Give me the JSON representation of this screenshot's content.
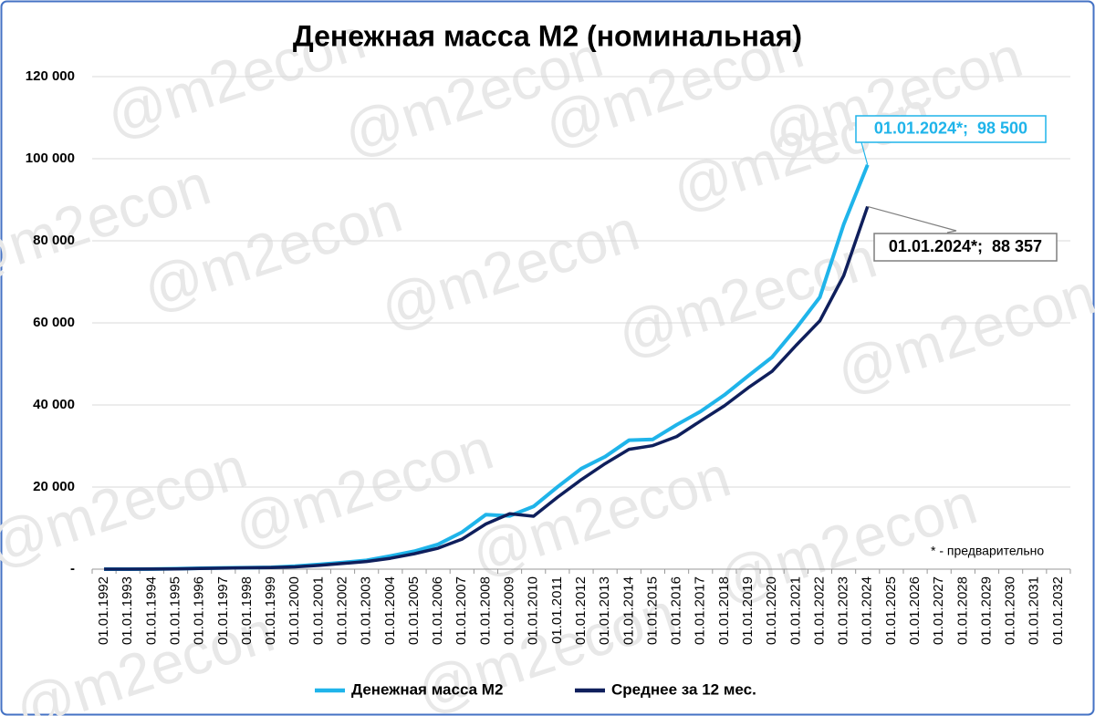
{
  "chart_data": {
    "type": "line",
    "title": "Денежная масса М2 (номинальная)",
    "footnote": "* - предварительно",
    "watermark": "@m2econ",
    "categories": [
      "01.01.1992",
      "01.01.1993",
      "01.01.1994",
      "01.01.1995",
      "01.01.1996",
      "01.01.1997",
      "01.01.1998",
      "01.01.1999",
      "01.01.2000",
      "01.01.2001",
      "01.01.2002",
      "01.01.2003",
      "01.01.2004",
      "01.01.2005",
      "01.01.2006",
      "01.01.2007",
      "01.01.2008",
      "01.01.2009",
      "01.01.2010",
      "01.01.2011",
      "01.01.2012",
      "01.01.2013",
      "01.01.2014",
      "01.01.2015",
      "01.01.2016",
      "01.01.2017",
      "01.01.2018",
      "01.01.2019",
      "01.01.2020",
      "01.01.2021",
      "01.01.2022",
      "01.01.2023",
      "01.01.2024",
      "01.01.2025",
      "01.01.2026",
      "01.01.2027",
      "01.01.2028",
      "01.01.2029",
      "01.01.2030",
      "01.01.2031",
      "01.01.2032"
    ],
    "series": [
      {
        "name": "Денежная масса М2",
        "color": "#1fb4ea",
        "values": [
          1,
          4,
          33,
          97,
          220,
          295,
          374,
          448,
          714,
          1154,
          1612,
          2135,
          3213,
          4363,
          6045,
          8995,
          13272,
          12976,
          15268,
          20012,
          24483,
          27405,
          31405,
          31616,
          35179,
          38418,
          42442,
          47109,
          51660,
          58651,
          66253,
          84000,
          98500,
          null,
          null,
          null,
          null,
          null,
          null,
          null,
          null
        ],
        "value_labels": [
          null,
          null,
          null,
          null,
          null,
          null,
          null,
          null,
          null,
          null,
          null,
          null,
          null,
          null,
          null,
          null,
          null,
          null,
          null,
          null,
          null,
          null,
          null,
          null,
          null,
          null,
          null,
          null,
          null,
          null,
          null,
          null,
          "01.01.2024*;  98 500",
          null,
          null,
          null,
          null,
          null,
          null,
          null,
          null
        ]
      },
      {
        "name": "Среднее за 12 мес.",
        "color": "#0f1f5c",
        "values": [
          0.5,
          2,
          15,
          60,
          170,
          260,
          340,
          400,
          560,
          930,
          1380,
          1870,
          2650,
          3750,
          5100,
          7300,
          11000,
          13500,
          12900,
          17500,
          21800,
          25700,
          29200,
          30100,
          32300,
          36100,
          39800,
          44200,
          48200,
          54500,
          60500,
          71500,
          88357,
          null,
          null,
          null,
          null,
          null,
          null,
          null,
          null
        ],
        "value_labels": [
          null,
          null,
          null,
          null,
          null,
          null,
          null,
          null,
          null,
          null,
          null,
          null,
          null,
          null,
          null,
          null,
          null,
          null,
          null,
          null,
          null,
          null,
          null,
          null,
          null,
          null,
          null,
          null,
          null,
          null,
          null,
          null,
          "01.01.2024*;  88 357",
          null,
          null,
          null,
          null,
          null,
          null,
          null,
          null
        ]
      }
    ],
    "ylim": [
      0,
      120000
    ],
    "yticks": [
      {
        "value": 0,
        "label": "-"
      },
      {
        "value": 20000,
        "label": "20 000"
      },
      {
        "value": 40000,
        "label": "40 000"
      },
      {
        "value": 60000,
        "label": "60 000"
      },
      {
        "value": 80000,
        "label": "80 000"
      },
      {
        "value": 100000,
        "label": "100 000"
      },
      {
        "value": 120000,
        "label": "120 000"
      }
    ],
    "grid": true,
    "legend": "bottom"
  }
}
